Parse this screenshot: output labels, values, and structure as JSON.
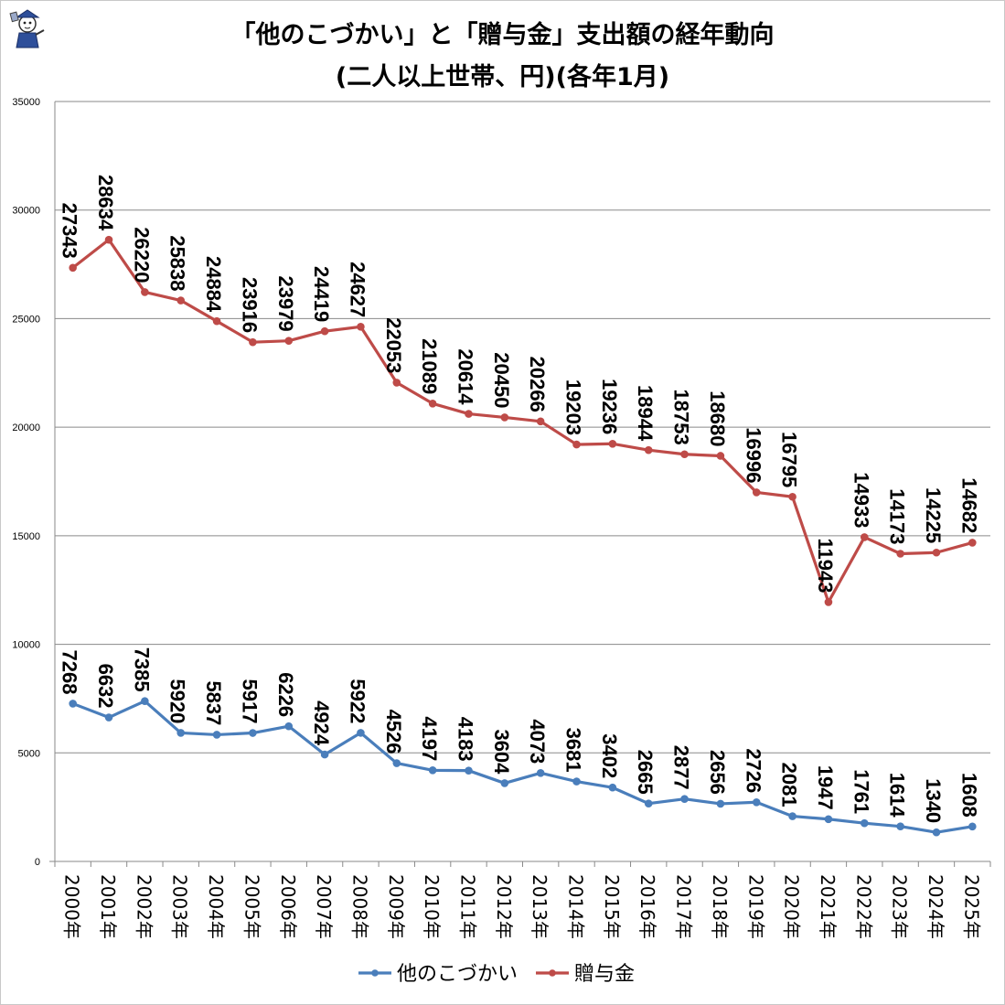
{
  "chart_data": {
    "type": "line",
    "title": "「他のこづかい」と「贈与金」支出額の経年動向",
    "subtitle": "(二人以上世帯、円)(各年1月)",
    "categories": [
      "2000年",
      "2001年",
      "2002年",
      "2003年",
      "2004年",
      "2005年",
      "2006年",
      "2007年",
      "2008年",
      "2009年",
      "2010年",
      "2011年",
      "2012年",
      "2013年",
      "2014年",
      "2015年",
      "2016年",
      "2017年",
      "2018年",
      "2019年",
      "2020年",
      "2021年",
      "2022年",
      "2023年",
      "2024年",
      "2025年"
    ],
    "ylim": [
      0,
      35000
    ],
    "yticks": [
      0,
      5000,
      10000,
      15000,
      20000,
      25000,
      30000,
      35000
    ],
    "grid": true,
    "legend_position": "bottom",
    "series": [
      {
        "name": "他のこづかい",
        "color": "#4a7ebb",
        "values": [
          7268,
          6632,
          7385,
          5920,
          5837,
          5917,
          6226,
          4924,
          5922,
          4526,
          4197,
          4183,
          3604,
          4073,
          3681,
          3402,
          2665,
          2877,
          2656,
          2726,
          2081,
          1947,
          1761,
          1614,
          1340,
          1608
        ]
      },
      {
        "name": "贈与金",
        "color": "#be4b48",
        "values": [
          27343,
          28634,
          26220,
          25838,
          24884,
          23916,
          23979,
          24419,
          24627,
          22053,
          21089,
          20614,
          20450,
          20266,
          19203,
          19236,
          18944,
          18753,
          18680,
          16996,
          16795,
          11943,
          14933,
          14173,
          14225,
          14682
        ]
      }
    ]
  }
}
